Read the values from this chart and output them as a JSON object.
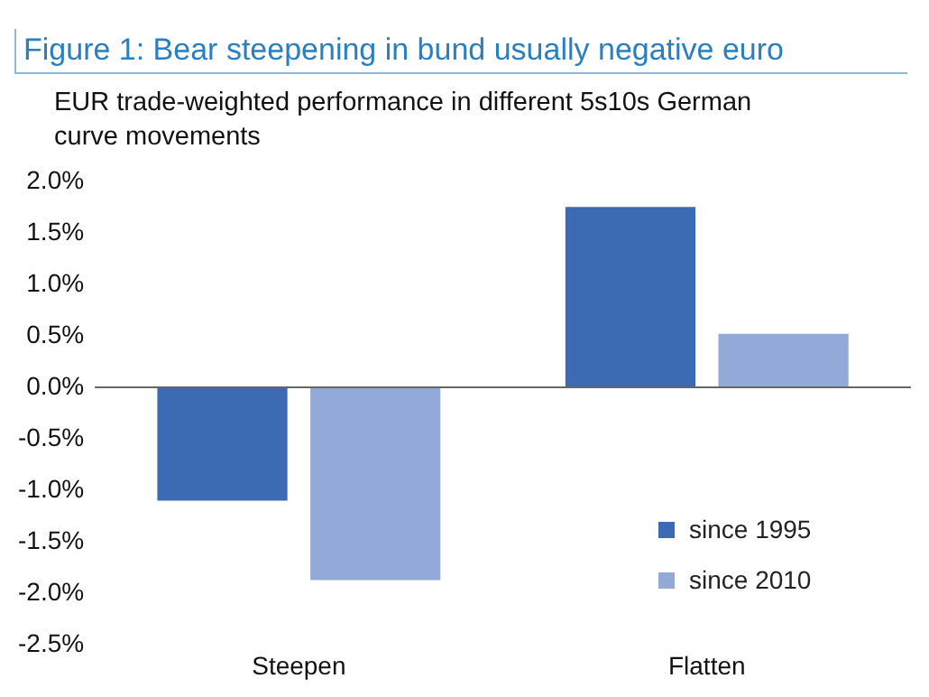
{
  "chart_data": {
    "type": "bar",
    "title": "Figure 1: Bear steepening in bund usually negative euro",
    "subtitle": "EUR trade-weighted performance in different 5s10s German curve movements",
    "categories": [
      "Steepen",
      "Flatten"
    ],
    "series": [
      {
        "name": "since 1995",
        "color": "#3d6bb3",
        "values": [
          -1.1,
          1.75
        ]
      },
      {
        "name": "since 2010",
        "color": "#93a9d8",
        "values": [
          -1.87,
          0.52
        ]
      }
    ],
    "ylim": [
      -2.5,
      2.0
    ],
    "yticks": [
      {
        "value": -2.5,
        "label": "-2.5%"
      },
      {
        "value": -2.0,
        "label": "-2.0%"
      },
      {
        "value": -1.5,
        "label": "-1.5%"
      },
      {
        "value": -1.0,
        "label": "-1.0%"
      },
      {
        "value": -0.5,
        "label": "-0.5%"
      },
      {
        "value": 0,
        "label": "0.0%"
      },
      {
        "value": 0.5,
        "label": "0.5%"
      },
      {
        "value": 1.0,
        "label": "1.0%"
      },
      {
        "value": 1.5,
        "label": "1.5%"
      },
      {
        "value": 2.0,
        "label": "2.0%"
      }
    ],
    "ref_lines": [
      {
        "axis": "y",
        "value": 0,
        "color": "#666666"
      }
    ],
    "grid": false,
    "legend": "bottom right"
  }
}
